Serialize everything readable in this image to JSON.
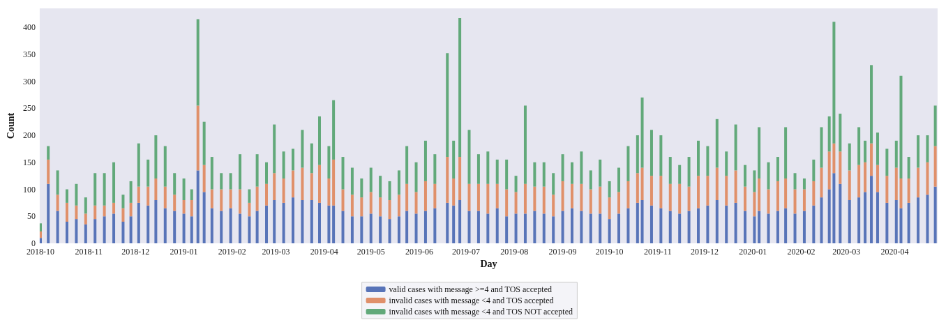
{
  "chart_data": {
    "type": "bar",
    "stacked": true,
    "xlabel": "Day",
    "ylabel": "Count",
    "x": [
      "2018-10-01",
      "2018-10-06",
      "2018-10-12",
      "2018-10-18",
      "2018-10-24",
      "2018-10-30",
      "2018-11-05",
      "2018-11-11",
      "2018-11-17",
      "2018-11-23",
      "2018-11-28",
      "2018-12-03",
      "2018-12-09",
      "2018-12-14",
      "2018-12-20",
      "2018-12-26",
      "2019-01-01",
      "2019-01-06",
      "2019-01-10",
      "2019-01-14",
      "2019-01-19",
      "2019-01-25",
      "2019-01-31",
      "2019-02-06",
      "2019-02-12",
      "2019-02-17",
      "2019-02-23",
      "2019-02-28",
      "2019-03-06",
      "2019-03-12",
      "2019-03-18",
      "2019-03-24",
      "2019-03-29",
      "2019-04-04",
      "2019-04-07",
      "2019-04-13",
      "2019-04-19",
      "2019-04-25",
      "2019-05-01",
      "2019-05-07",
      "2019-05-13",
      "2019-05-19",
      "2019-05-24",
      "2019-05-30",
      "2019-06-05",
      "2019-06-11",
      "2019-06-19",
      "2019-06-23",
      "2019-06-27",
      "2019-07-03",
      "2019-07-09",
      "2019-07-15",
      "2019-07-21",
      "2019-07-27",
      "2019-08-02",
      "2019-08-08",
      "2019-08-14",
      "2019-08-20",
      "2019-08-26",
      "2019-09-01",
      "2019-09-07",
      "2019-09-13",
      "2019-09-19",
      "2019-09-25",
      "2019-10-01",
      "2019-10-07",
      "2019-10-13",
      "2019-10-19",
      "2019-10-22",
      "2019-10-28",
      "2019-11-03",
      "2019-11-09",
      "2019-11-15",
      "2019-11-21",
      "2019-11-27",
      "2019-12-03",
      "2019-12-09",
      "2019-12-15",
      "2019-12-21",
      "2019-12-27",
      "2020-01-02",
      "2020-01-05",
      "2020-01-11",
      "2020-01-17",
      "2020-01-22",
      "2020-01-28",
      "2020-02-03",
      "2020-02-09",
      "2020-02-14",
      "2020-02-19",
      "2020-02-22",
      "2020-02-26",
      "2020-03-03",
      "2020-03-09",
      "2020-03-13",
      "2020-03-17",
      "2020-03-21",
      "2020-03-27",
      "2020-04-02",
      "2020-04-05",
      "2020-04-10",
      "2020-04-16",
      "2020-04-22",
      "2020-04-27"
    ],
    "series": [
      {
        "name": "valid cases with message >=4 and TOS accepted",
        "color": "#5874b8",
        "values": [
          10,
          110,
          60,
          40,
          45,
          35,
          45,
          50,
          55,
          40,
          50,
          75,
          70,
          80,
          65,
          60,
          55,
          50,
          135,
          95,
          65,
          60,
          65,
          55,
          50,
          60,
          70,
          80,
          75,
          85,
          80,
          80,
          75,
          70,
          70,
          60,
          50,
          50,
          55,
          50,
          45,
          50,
          60,
          55,
          60,
          65,
          75,
          70,
          80,
          60,
          60,
          55,
          65,
          50,
          55,
          55,
          60,
          55,
          50,
          60,
          65,
          60,
          55,
          55,
          45,
          55,
          65,
          75,
          80,
          70,
          65,
          60,
          55,
          60,
          65,
          70,
          80,
          70,
          75,
          60,
          50,
          60,
          55,
          60,
          65,
          55,
          60,
          70,
          85,
          100,
          130,
          110,
          80,
          85,
          95,
          125,
          95,
          75,
          80,
          65,
          75,
          85,
          90,
          105
        ]
      },
      {
        "name": "invalid cases with message <4 and TOS accepted",
        "color": "#e0906a",
        "values": [
          12,
          45,
          30,
          35,
          25,
          20,
          25,
          20,
          20,
          25,
          25,
          30,
          35,
          40,
          40,
          30,
          25,
          30,
          120,
          50,
          35,
          40,
          35,
          45,
          25,
          45,
          40,
          50,
          45,
          50,
          60,
          50,
          70,
          50,
          85,
          40,
          40,
          35,
          40,
          35,
          35,
          40,
          50,
          40,
          55,
          45,
          85,
          50,
          80,
          50,
          50,
          55,
          45,
          50,
          40,
          55,
          45,
          50,
          40,
          55,
          45,
          50,
          45,
          50,
          40,
          40,
          50,
          55,
          60,
          55,
          60,
          50,
          55,
          45,
          60,
          55,
          60,
          55,
          60,
          45,
          45,
          60,
          45,
          55,
          55,
          45,
          40,
          45,
          55,
          70,
          55,
          60,
          55,
          60,
          55,
          60,
          50,
          50,
          60,
          55,
          45,
          55,
          60,
          75
        ]
      },
      {
        "name": "invalid cases with message <4 and TOS NOT accepted",
        "color": "#62a97a",
        "values": [
          15,
          25,
          45,
          25,
          40,
          30,
          60,
          60,
          75,
          25,
          40,
          80,
          50,
          80,
          75,
          40,
          40,
          20,
          160,
          80,
          60,
          30,
          30,
          65,
          25,
          60,
          40,
          90,
          50,
          40,
          70,
          55,
          90,
          60,
          110,
          60,
          50,
          35,
          45,
          40,
          35,
          45,
          70,
          55,
          75,
          55,
          192,
          70,
          257,
          100,
          55,
          60,
          45,
          55,
          30,
          145,
          45,
          45,
          40,
          50,
          40,
          60,
          35,
          50,
          30,
          45,
          65,
          70,
          130,
          85,
          75,
          50,
          35,
          55,
          65,
          55,
          90,
          45,
          85,
          40,
          40,
          95,
          50,
          45,
          95,
          30,
          20,
          40,
          75,
          65,
          225,
          70,
          50,
          70,
          40,
          145,
          60,
          50,
          50,
          190,
          40,
          60,
          50,
          75
        ]
      }
    ],
    "xlim": [
      "2018-10-01",
      "2020-04-28"
    ],
    "xticks": [
      "2018-10",
      "2018-11",
      "2018-12",
      "2019-01",
      "2019-02",
      "2019-03",
      "2019-04",
      "2019-05",
      "2019-06",
      "2019-07",
      "2019-08",
      "2019-09",
      "2019-10",
      "2019-11",
      "2019-12",
      "2020-01",
      "2020-02",
      "2020-03",
      "2020-04"
    ],
    "ylim": [
      0,
      435
    ],
    "yticks": [
      0,
      50,
      100,
      150,
      200,
      250,
      300,
      350,
      400
    ],
    "grid": false,
    "legend": "bottom"
  }
}
